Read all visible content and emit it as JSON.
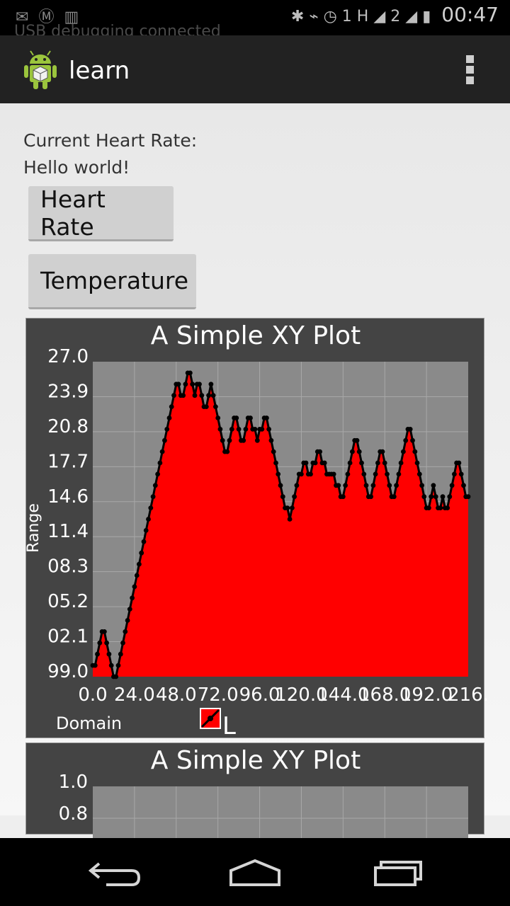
{
  "status_bar": {
    "time": "00:47",
    "sim1": "1",
    "network": "H",
    "sim2": "2"
  },
  "notification_ghost": "USB debugging connected",
  "action_bar": {
    "title": "learn"
  },
  "main": {
    "heart_rate_label": "Current Heart Rate:",
    "hello_text": "Hello world!",
    "heart_rate_button": "Heart Rate",
    "temperature_button": "Temperature"
  },
  "colors": {
    "action_bar": "#222222",
    "plot_bg": "#444444",
    "grid_bg": "#8a8a8a",
    "series_fill": "#ff0000",
    "series_line": "#000000"
  },
  "chart_data": [
    {
      "type": "area",
      "title": "A Simple XY Plot",
      "xlabel": "Domain",
      "ylabel": "Range",
      "ylim": [
        99,
        127
      ],
      "xlim": [
        0,
        216
      ],
      "y_tick_labels": [
        "27.0",
        "23.9",
        "20.8",
        "17.7",
        "14.6",
        "11.4",
        "08.3",
        "05.2",
        "02.1",
        "99.0"
      ],
      "x_tick_labels": [
        "0.0",
        "24.0",
        "48.0",
        "72.0",
        "96.0",
        "120.0",
        "144.0",
        "168.0",
        "192.0",
        "216."
      ],
      "legend": [
        {
          "name": "L"
        }
      ],
      "legend_position": "bottom",
      "grid": true,
      "series": [
        {
          "name": "L",
          "values": [
            100,
            100,
            101,
            102,
            103,
            103,
            102,
            101,
            100,
            99,
            99,
            100,
            101,
            102,
            103,
            104,
            105,
            106,
            107,
            108,
            109,
            110,
            111,
            112,
            113,
            114,
            115,
            116,
            117,
            118,
            119,
            120,
            121,
            122,
            123,
            124,
            125,
            125,
            124,
            124,
            125,
            126,
            126,
            125,
            124,
            125,
            125,
            124,
            123,
            123,
            124,
            125,
            124,
            123,
            122,
            121,
            120,
            119,
            119,
            120,
            121,
            122,
            122,
            121,
            120,
            120,
            121,
            122,
            122,
            121,
            121,
            120,
            121,
            121,
            122,
            122,
            121,
            120,
            119,
            118,
            117,
            116,
            115,
            114,
            114,
            113,
            114,
            115,
            116,
            117,
            117,
            118,
            118,
            117,
            117,
            118,
            118,
            119,
            119,
            118,
            118,
            117,
            117,
            117,
            117,
            116,
            116,
            115,
            115,
            116,
            117,
            118,
            119,
            120,
            120,
            119,
            118,
            117,
            116,
            115,
            115,
            116,
            117,
            118,
            119,
            119,
            118,
            117,
            116,
            115,
            115,
            116,
            117,
            118,
            119,
            120,
            121,
            121,
            120,
            119,
            118,
            117,
            116,
            115,
            114,
            114,
            115,
            116,
            115,
            114,
            114,
            115,
            114,
            114,
            115,
            116,
            117,
            118,
            118,
            117,
            116,
            115,
            115
          ]
        }
      ]
    },
    {
      "type": "line",
      "title": "A Simple XY Plot",
      "y_tick_labels": [
        "1.0",
        "0.8"
      ]
    }
  ]
}
